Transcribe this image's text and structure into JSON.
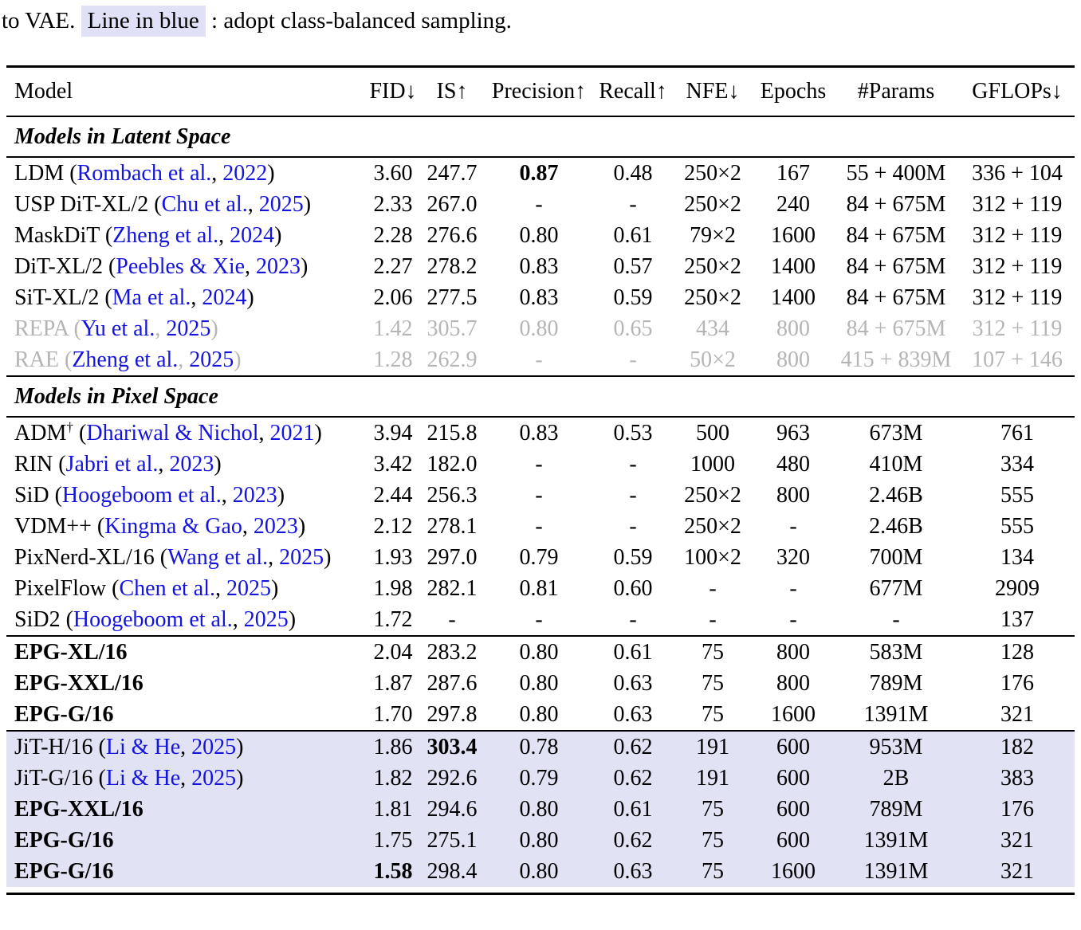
{
  "caption": {
    "prefix": "to VAE. ",
    "highlight": "Line in blue",
    "suffix": " : adopt class-balanced sampling."
  },
  "colors": {
    "citation_blue": "#1414dc",
    "deemphasized_gray": "#b5b5b5",
    "highlight_lavender": "#e2e2f5"
  },
  "table": {
    "columns": [
      "Model",
      "FID↓",
      "IS↑",
      "Precision↑",
      "Recall↑",
      "NFE↓",
      "Epochs",
      "#Params",
      "GFLOPs↓"
    ],
    "groups": [
      {
        "section_title": "Models in Latent Space",
        "rows": [
          {
            "model": [
              {
                "t": "LDM ("
              },
              {
                "t": "Rombach et al.",
                "s": "link"
              },
              {
                "t": ", "
              },
              {
                "t": "2022",
                "s": "link"
              },
              {
                "t": ")"
              }
            ],
            "values": [
              "3.60",
              "247.7",
              "0.87",
              "0.48",
              "250×2",
              "167",
              "55 + 400M",
              "336 + 104"
            ],
            "bold_values": [
              2
            ]
          },
          {
            "model": [
              {
                "t": "USP DiT-XL/2 ("
              },
              {
                "t": "Chu et al.",
                "s": "link"
              },
              {
                "t": ", "
              },
              {
                "t": "2025",
                "s": "link"
              },
              {
                "t": ")"
              }
            ],
            "values": [
              "2.33",
              "267.0",
              "-",
              "-",
              "250×2",
              "240",
              "84 + 675M",
              "312 + 119"
            ]
          },
          {
            "model": [
              {
                "t": "MaskDiT ("
              },
              {
                "t": "Zheng et al.",
                "s": "link"
              },
              {
                "t": ", "
              },
              {
                "t": "2024",
                "s": "link"
              },
              {
                "t": ")"
              }
            ],
            "values": [
              "2.28",
              "276.6",
              "0.80",
              "0.61",
              "79×2",
              "1600",
              "84 + 675M",
              "312 + 119"
            ]
          },
          {
            "model": [
              {
                "t": "DiT-XL/2 ("
              },
              {
                "t": "Peebles & Xie",
                "s": "link"
              },
              {
                "t": ", "
              },
              {
                "t": "2023",
                "s": "link"
              },
              {
                "t": ")"
              }
            ],
            "values": [
              "2.27",
              "278.2",
              "0.83",
              "0.57",
              "250×2",
              "1400",
              "84 + 675M",
              "312 + 119"
            ]
          },
          {
            "model": [
              {
                "t": "SiT-XL/2 ("
              },
              {
                "t": "Ma et al.",
                "s": "link"
              },
              {
                "t": ", "
              },
              {
                "t": "2024",
                "s": "link"
              },
              {
                "t": ")"
              }
            ],
            "values": [
              "2.06",
              "277.5",
              "0.83",
              "0.59",
              "250×2",
              "1400",
              "84 + 675M",
              "312 + 119"
            ]
          },
          {
            "gray": true,
            "model": [
              {
                "t": "REPA ",
                "s": "gray"
              },
              {
                "t": "("
              },
              {
                "t": "Yu et al.",
                "s": "link"
              },
              {
                "t": ", "
              },
              {
                "t": "2025",
                "s": "link"
              },
              {
                "t": ")"
              }
            ],
            "values": [
              "1.42",
              "305.7",
              "0.80",
              "0.65",
              "434",
              "800",
              "84 + 675M",
              "312 + 119"
            ]
          },
          {
            "gray": true,
            "model": [
              {
                "t": "RAE ",
                "s": "gray"
              },
              {
                "t": "(",
                "s": "gray"
              },
              {
                "t": "Zheng et al.",
                "s": "link"
              },
              {
                "t": ", ",
                "s": "gray"
              },
              {
                "t": "2025",
                "s": "link"
              },
              {
                "t": ")",
                "s": "gray"
              }
            ],
            "values": [
              "1.28",
              "262.9",
              "-",
              "-",
              "50×2",
              "800",
              "415 + 839M",
              "107 + 146"
            ]
          }
        ]
      },
      {
        "section_title": "Models in Pixel Space",
        "rows": [
          {
            "model": [
              {
                "t": "ADM"
              },
              {
                "t": "†",
                "s": "sup"
              },
              {
                "t": " ("
              },
              {
                "t": "Dhariwal & Nichol",
                "s": "link"
              },
              {
                "t": ", "
              },
              {
                "t": "2021",
                "s": "link"
              },
              {
                "t": ")"
              }
            ],
            "values": [
              "3.94",
              "215.8",
              "0.83",
              "0.53",
              "500",
              "963",
              "673M",
              "761"
            ]
          },
          {
            "model": [
              {
                "t": "RIN ("
              },
              {
                "t": "Jabri et al.",
                "s": "link"
              },
              {
                "t": ", "
              },
              {
                "t": "2023",
                "s": "link"
              },
              {
                "t": ")"
              }
            ],
            "values": [
              "3.42",
              "182.0",
              "-",
              "-",
              "1000",
              "480",
              "410M",
              "334"
            ]
          },
          {
            "model": [
              {
                "t": "SiD ("
              },
              {
                "t": "Hoogeboom et al.",
                "s": "link"
              },
              {
                "t": ", "
              },
              {
                "t": "2023",
                "s": "link"
              },
              {
                "t": ")"
              }
            ],
            "values": [
              "2.44",
              "256.3",
              "-",
              "-",
              "250×2",
              "800",
              "2.46B",
              "555"
            ]
          },
          {
            "model": [
              {
                "t": "VDM++ ("
              },
              {
                "t": "Kingma & Gao",
                "s": "link"
              },
              {
                "t": ", "
              },
              {
                "t": "2023",
                "s": "link"
              },
              {
                "t": ")"
              }
            ],
            "values": [
              "2.12",
              "278.1",
              "-",
              "-",
              "250×2",
              "-",
              "2.46B",
              "555"
            ]
          },
          {
            "model": [
              {
                "t": "PixNerd-XL/16 ("
              },
              {
                "t": "Wang et al.",
                "s": "link"
              },
              {
                "t": ", "
              },
              {
                "t": "2025",
                "s": "link"
              },
              {
                "t": ")"
              }
            ],
            "values": [
              "1.93",
              "297.0",
              "0.79",
              "0.59",
              "100×2",
              "320",
              "700M",
              "134"
            ]
          },
          {
            "model": [
              {
                "t": "PixelFlow ("
              },
              {
                "t": "Chen et al.",
                "s": "link"
              },
              {
                "t": ", "
              },
              {
                "t": "2025",
                "s": "link"
              },
              {
                "t": ")"
              }
            ],
            "values": [
              "1.98",
              "282.1",
              "0.81",
              "0.60",
              "-",
              "-",
              "677M",
              "2909"
            ]
          },
          {
            "model": [
              {
                "t": "SiD2 ("
              },
              {
                "t": "Hoogeboom et al.",
                "s": "link"
              },
              {
                "t": ", "
              },
              {
                "t": "2025",
                "s": "link"
              },
              {
                "t": ")"
              }
            ],
            "values": [
              "1.72",
              "-",
              "-",
              "-",
              "-",
              "-",
              "-",
              "137"
            ]
          }
        ]
      },
      {
        "rows": [
          {
            "model": [
              {
                "t": "EPG-XL/16",
                "s": "bold"
              }
            ],
            "values": [
              "2.04",
              "283.2",
              "0.80",
              "0.61",
              "75",
              "800",
              "583M",
              "128"
            ]
          },
          {
            "model": [
              {
                "t": "EPG-XXL/16",
                "s": "bold"
              }
            ],
            "values": [
              "1.87",
              "287.6",
              "0.80",
              "0.63",
              "75",
              "800",
              "789M",
              "176"
            ]
          },
          {
            "model": [
              {
                "t": "EPG-G/16",
                "s": "bold"
              }
            ],
            "values": [
              "1.70",
              "297.8",
              "0.80",
              "0.63",
              "75",
              "1600",
              "1391M",
              "321"
            ]
          }
        ]
      },
      {
        "highlight": true,
        "rows": [
          {
            "model": [
              {
                "t": "JiT-H/16 ("
              },
              {
                "t": "Li & He",
                "s": "link"
              },
              {
                "t": ", "
              },
              {
                "t": "2025",
                "s": "link"
              },
              {
                "t": ")"
              }
            ],
            "values": [
              "1.86",
              "303.4",
              "0.78",
              "0.62",
              "191",
              "600",
              "953M",
              "182"
            ],
            "bold_values": [
              1
            ]
          },
          {
            "model": [
              {
                "t": "JiT-G/16 ("
              },
              {
                "t": "Li & He",
                "s": "link"
              },
              {
                "t": ", "
              },
              {
                "t": "2025",
                "s": "link"
              },
              {
                "t": ")"
              }
            ],
            "values": [
              "1.82",
              "292.6",
              "0.79",
              "0.62",
              "191",
              "600",
              "2B",
              "383"
            ]
          },
          {
            "model": [
              {
                "t": "EPG-XXL/16",
                "s": "bold"
              }
            ],
            "values": [
              "1.81",
              "294.6",
              "0.80",
              "0.61",
              "75",
              "600",
              "789M",
              "176"
            ]
          },
          {
            "model": [
              {
                "t": "EPG-G/16",
                "s": "bold"
              }
            ],
            "values": [
              "1.75",
              "275.1",
              "0.80",
              "0.62",
              "75",
              "600",
              "1391M",
              "321"
            ]
          },
          {
            "model": [
              {
                "t": "EPG-G/16",
                "s": "bold"
              }
            ],
            "values": [
              "1.58",
              "298.4",
              "0.80",
              "0.63",
              "75",
              "1600",
              "1391M",
              "321"
            ],
            "bold_values": [
              0
            ]
          }
        ]
      }
    ]
  }
}
